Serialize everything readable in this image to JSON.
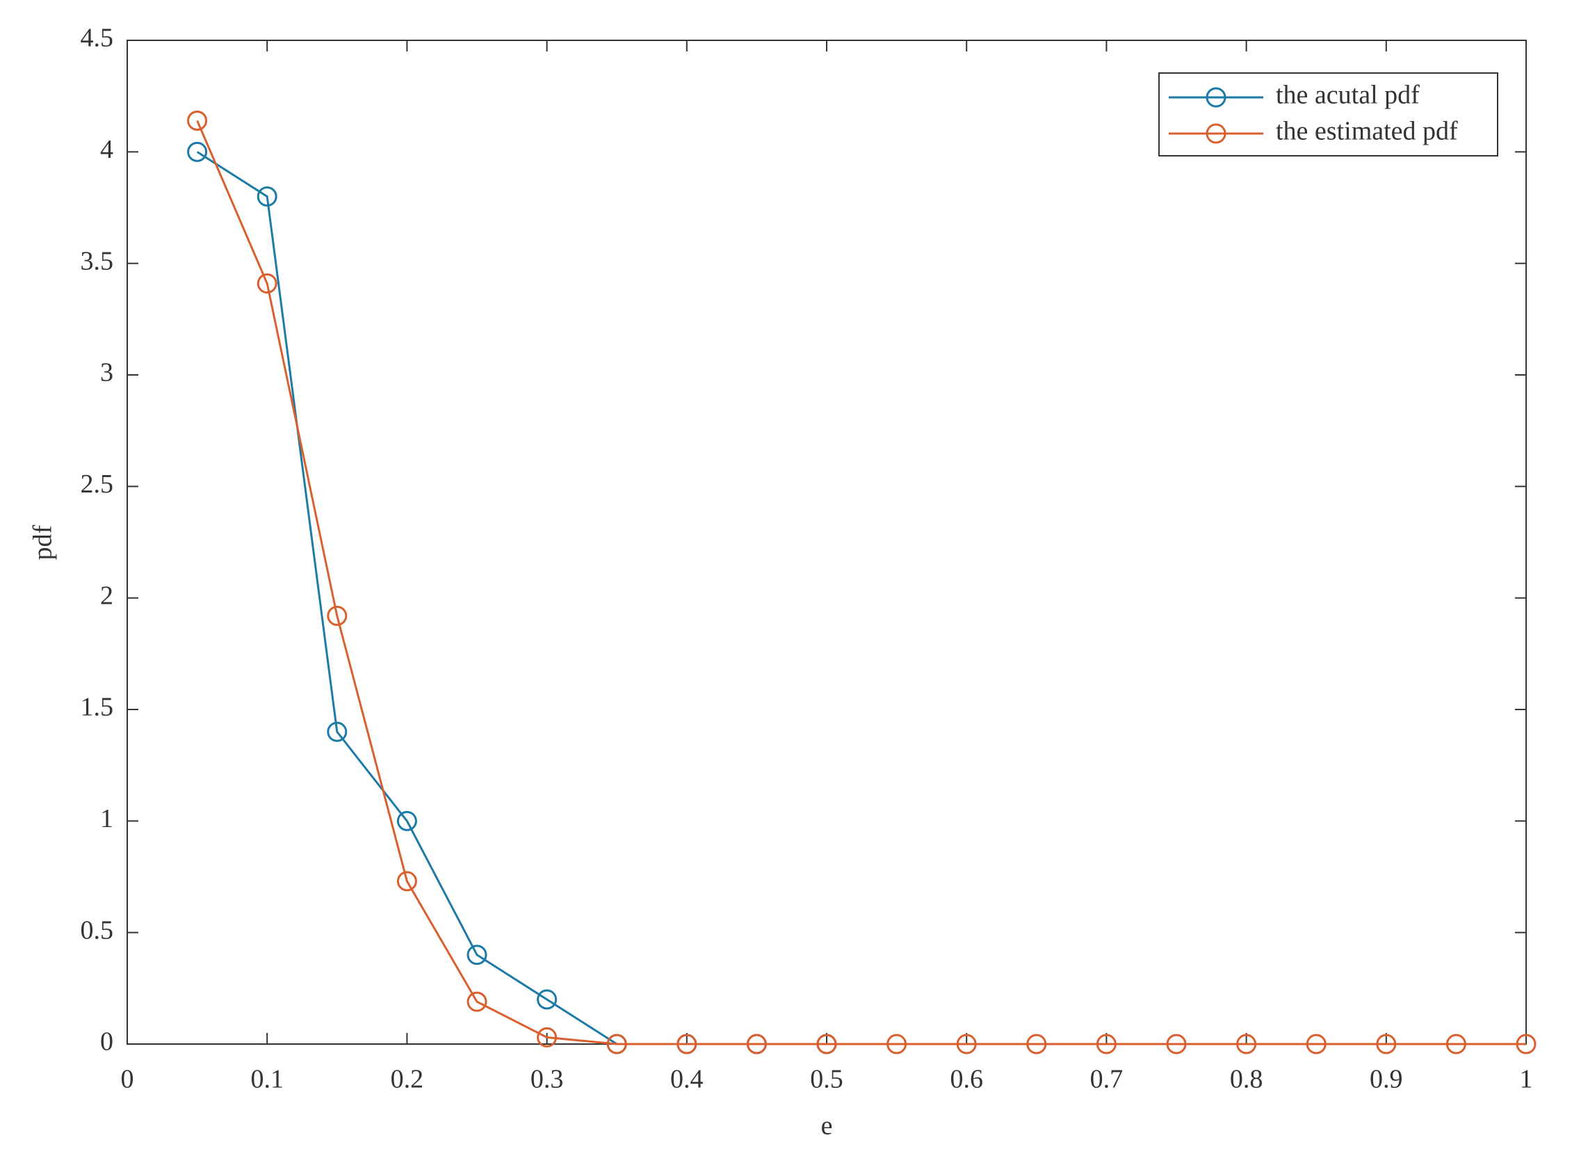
{
  "chart_data": {
    "type": "line",
    "x": [
      0.05,
      0.1,
      0.15,
      0.2,
      0.25,
      0.3,
      0.35,
      0.4,
      0.45,
      0.5,
      0.55,
      0.6,
      0.65,
      0.7,
      0.75,
      0.8,
      0.85,
      0.9,
      0.95,
      1
    ],
    "series": [
      {
        "name": "the acutal pdf",
        "color": "#1b7aa6",
        "values": [
          4,
          3.8,
          1.4,
          1,
          0.4,
          0.2,
          0,
          0,
          0,
          0,
          null,
          null,
          null,
          null,
          null,
          null,
          null,
          null,
          null,
          null
        ]
      },
      {
        "name": "the estimated pdf",
        "color": "#d9602e",
        "values": [
          4.14,
          3.41,
          1.92,
          0.73,
          0.19,
          0.03,
          0,
          0,
          0,
          0,
          0,
          0,
          0,
          0,
          0,
          0,
          0,
          0,
          0,
          0
        ]
      }
    ],
    "xlabel": "e",
    "ylabel": "pdf",
    "xlim": [
      0,
      1
    ],
    "xticks": [
      0,
      0.1,
      0.2,
      0.3,
      0.4,
      0.5,
      0.6,
      0.7,
      0.8,
      0.9,
      1
    ],
    "ylim": [
      0,
      4.5
    ],
    "yticks": [
      0,
      0.5,
      1,
      1.5,
      2,
      2.5,
      3,
      3.5,
      4,
      4.5
    ],
    "legend": "upper right",
    "marker": "circle"
  }
}
